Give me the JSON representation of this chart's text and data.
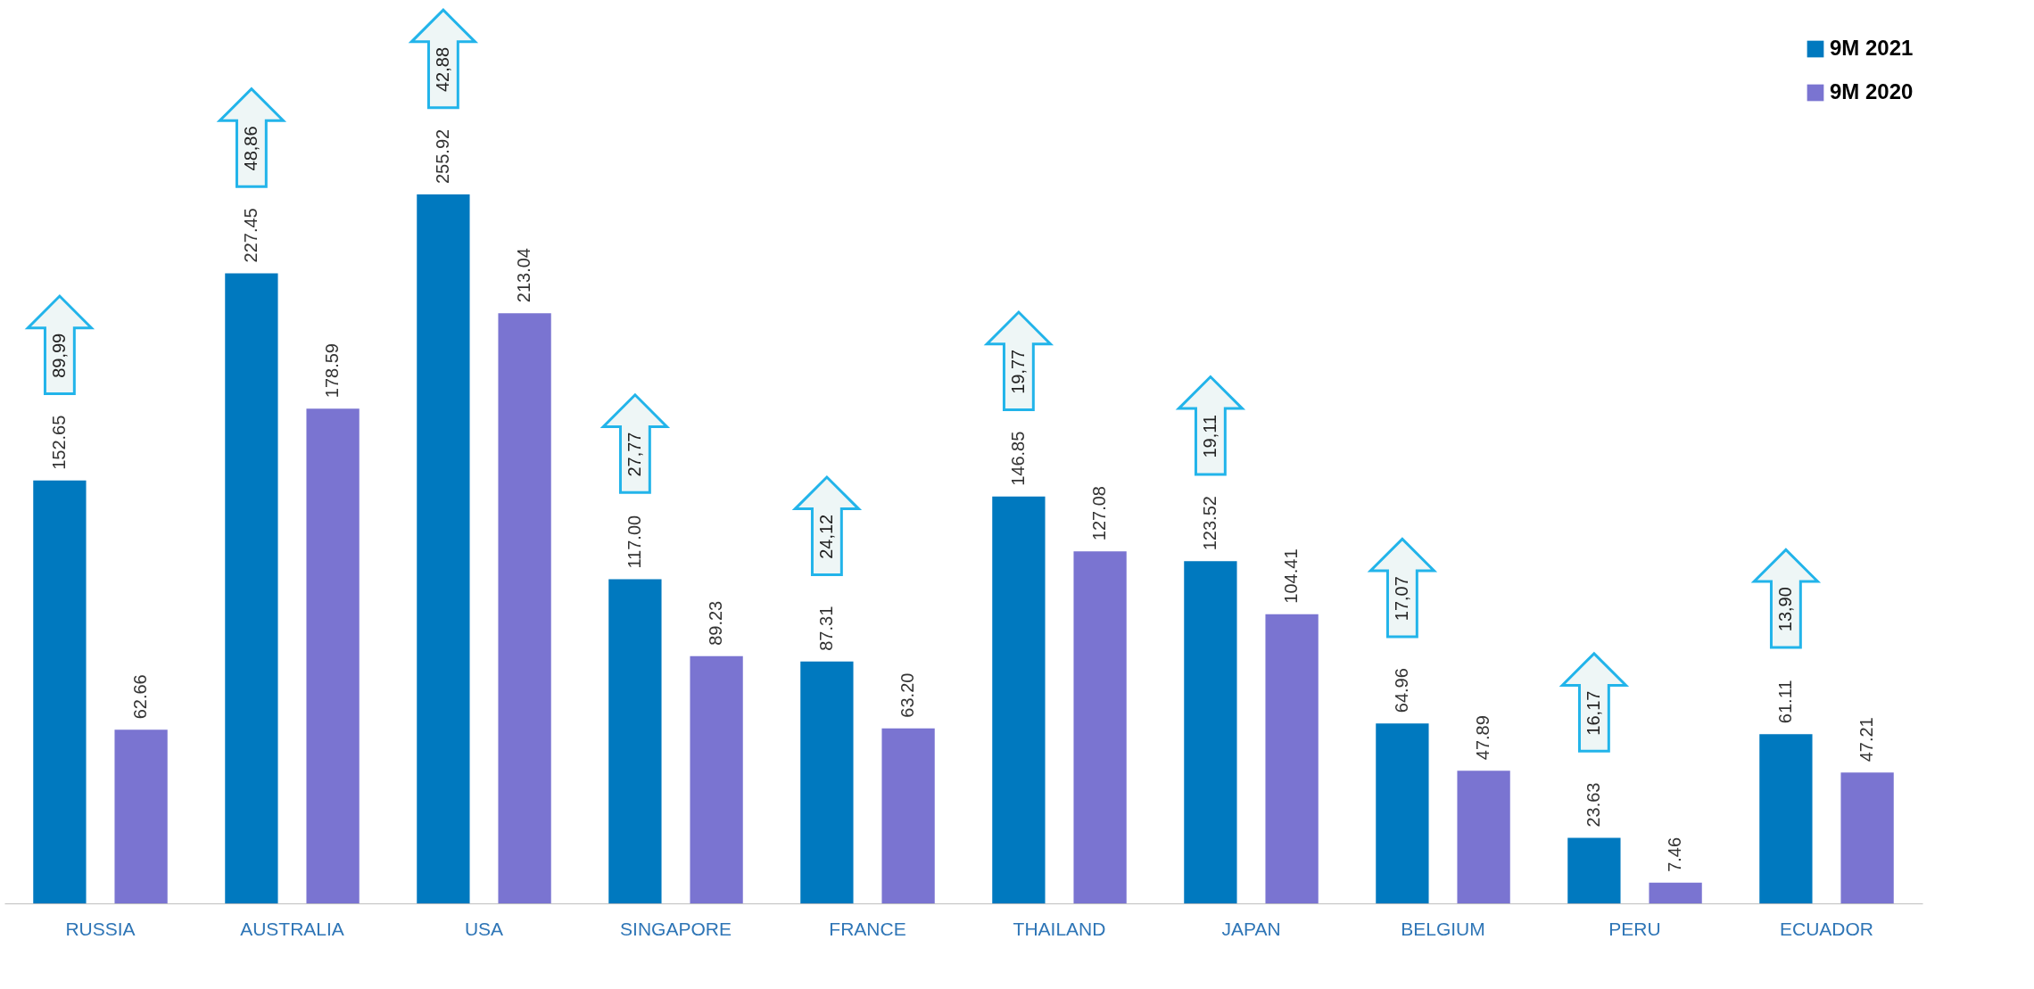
{
  "chart_data": {
    "type": "bar",
    "categories": [
      "RUSSIA",
      "AUSTRALIA",
      "USA",
      "SINGAPORE",
      "FRANCE",
      "THAILAND",
      "JAPAN",
      "BELGIUM",
      "PERU",
      "ECUADOR"
    ],
    "series": [
      {
        "name": "9M 2021",
        "color": "#0079bf",
        "values": [
          152.65,
          227.45,
          255.92,
          117.0,
          87.31,
          146.85,
          123.52,
          64.96,
          23.63,
          61.11
        ],
        "value_labels": [
          "152.65",
          "227.45",
          "255.92",
          "117.00",
          "87.31",
          "146.85",
          "123.52",
          "64.96",
          "23.63",
          "61.11"
        ]
      },
      {
        "name": "9M 2020",
        "color": "#7a74d1",
        "values": [
          62.66,
          178.59,
          213.04,
          89.23,
          63.2,
          127.08,
          104.41,
          47.89,
          7.46,
          47.21
        ],
        "value_labels": [
          "62.66",
          "178.59",
          "213.04",
          "89.23",
          "63.20",
          "127.08",
          "104.41",
          "47.89",
          "7.46",
          "47.21"
        ]
      }
    ],
    "legend": "top right",
    "annotations": [
      "89,99",
      "48,86",
      "42,88",
      "27,77",
      "24,12",
      "19,77",
      "19,11",
      "17,07",
      "16,17",
      "13,90"
    ]
  }
}
